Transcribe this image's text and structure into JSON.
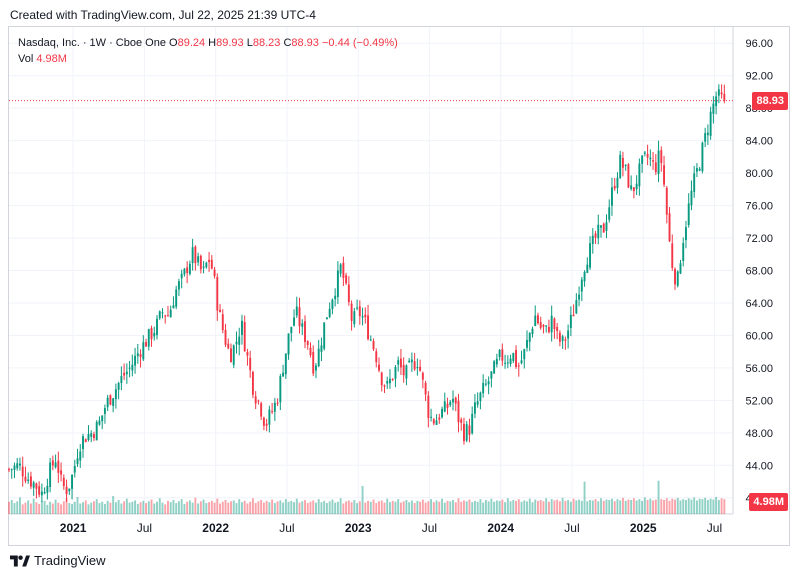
{
  "header": {
    "created": "Created with TradingView.com, Jul 22, 2025 21:39 UTC-4"
  },
  "legend": {
    "symbol": "Nasdaq, Inc. · 1W · Cboe One",
    "o_label": "O",
    "o_value": "89.24",
    "h_label": "H",
    "h_value": "89.93",
    "l_label": "L",
    "l_value": "88.23",
    "c_label": "C",
    "c_value": "88.93",
    "change": "−0.44 (−0.49%)",
    "vol_label": "Vol",
    "vol_value": "4.98M"
  },
  "price_tag": "88.93",
  "volume_tag": "4.98M",
  "footer": {
    "brand": "TradingView"
  },
  "colors": {
    "up": "#089981",
    "down": "#f23645",
    "grid": "#f0f3fa",
    "axis_text": "#131722"
  },
  "chart_data": {
    "type": "candlestick",
    "x_tick_labels": [
      "2021",
      "Jul",
      "2022",
      "Jul",
      "2023",
      "Jul",
      "2024",
      "Jul",
      "2025",
      "Jul"
    ],
    "x_tick_values": [
      2021.0,
      2021.5,
      2022.0,
      2022.5,
      2023.0,
      2023.5,
      2024.0,
      2024.5,
      2025.0,
      2025.5
    ],
    "x_range": [
      2020.55,
      2025.63
    ],
    "y_ticks": [
      "40.00",
      "44.00",
      "48.00",
      "52.00",
      "56.00",
      "60.00",
      "64.00",
      "68.00",
      "72.00",
      "76.00",
      "80.00",
      "84.00",
      "88.00",
      "92.00",
      "96.00"
    ],
    "y_range": [
      38.0,
      98.0
    ],
    "last_price": 88.93,
    "price_path": [
      [
        2020.55,
        43.5
      ],
      [
        2020.62,
        44.0
      ],
      [
        2020.68,
        42.5
      ],
      [
        2020.74,
        41.5
      ],
      [
        2020.78,
        40.5
      ],
      [
        2020.83,
        43.0
      ],
      [
        2020.88,
        45.0
      ],
      [
        2020.92,
        41.5
      ],
      [
        2020.96,
        41.0
      ],
      [
        2021.0,
        43.0
      ],
      [
        2021.04,
        46.5
      ],
      [
        2021.08,
        47.5
      ],
      [
        2021.13,
        48.0
      ],
      [
        2021.18,
        49.0
      ],
      [
        2021.23,
        51.5
      ],
      [
        2021.3,
        53.5
      ],
      [
        2021.35,
        55.0
      ],
      [
        2021.4,
        56.0
      ],
      [
        2021.46,
        58.0
      ],
      [
        2021.52,
        59.5
      ],
      [
        2021.58,
        61.0
      ],
      [
        2021.63,
        63.0
      ],
      [
        2021.67,
        62.5
      ],
      [
        2021.72,
        65.5
      ],
      [
        2021.77,
        67.0
      ],
      [
        2021.81,
        69.0
      ],
      [
        2021.84,
        70.0
      ],
      [
        2021.87,
        69.0
      ],
      [
        2021.91,
        67.5
      ],
      [
        2021.95,
        69.5
      ],
      [
        2021.98,
        68.0
      ],
      [
        2022.02,
        63.0
      ],
      [
        2022.06,
        60.0
      ],
      [
        2022.1,
        57.5
      ],
      [
        2022.14,
        59.0
      ],
      [
        2022.18,
        61.5
      ],
      [
        2022.22,
        57.5
      ],
      [
        2022.27,
        53.0
      ],
      [
        2022.31,
        51.5
      ],
      [
        2022.35,
        49.0
      ],
      [
        2022.39,
        50.5
      ],
      [
        2022.43,
        52.0
      ],
      [
        2022.47,
        56.0
      ],
      [
        2022.52,
        60.5
      ],
      [
        2022.56,
        63.0
      ],
      [
        2022.6,
        61.0
      ],
      [
        2022.65,
        59.0
      ],
      [
        2022.69,
        56.0
      ],
      [
        2022.73,
        58.5
      ],
      [
        2022.77,
        62.0
      ],
      [
        2022.81,
        64.5
      ],
      [
        2022.85,
        66.5
      ],
      [
        2022.88,
        68.5
      ],
      [
        2022.92,
        65.0
      ],
      [
        2022.96,
        61.5
      ],
      [
        2023.0,
        63.0
      ],
      [
        2023.04,
        62.0
      ],
      [
        2023.08,
        60.0
      ],
      [
        2023.12,
        58.0
      ],
      [
        2023.16,
        55.0
      ],
      [
        2023.2,
        53.5
      ],
      [
        2023.24,
        55.0
      ],
      [
        2023.28,
        56.5
      ],
      [
        2023.33,
        55.0
      ],
      [
        2023.38,
        56.5
      ],
      [
        2023.42,
        57.0
      ],
      [
        2023.46,
        53.5
      ],
      [
        2023.5,
        50.0
      ],
      [
        2023.54,
        49.5
      ],
      [
        2023.58,
        50.5
      ],
      [
        2023.62,
        51.0
      ],
      [
        2023.66,
        52.5
      ],
      [
        2023.7,
        50.0
      ],
      [
        2023.74,
        48.0
      ],
      [
        2023.78,
        48.5
      ],
      [
        2023.82,
        51.0
      ],
      [
        2023.87,
        53.0
      ],
      [
        2023.92,
        54.5
      ],
      [
        2023.96,
        56.0
      ],
      [
        2024.0,
        57.5
      ],
      [
        2024.04,
        57.0
      ],
      [
        2024.08,
        58.0
      ],
      [
        2024.12,
        56.0
      ],
      [
        2024.16,
        57.5
      ],
      [
        2024.2,
        60.0
      ],
      [
        2024.24,
        62.5
      ],
      [
        2024.28,
        61.0
      ],
      [
        2024.32,
        60.5
      ],
      [
        2024.36,
        62.0
      ],
      [
        2024.4,
        59.5
      ],
      [
        2024.44,
        59.0
      ],
      [
        2024.48,
        61.0
      ],
      [
        2024.52,
        63.5
      ],
      [
        2024.56,
        67.0
      ],
      [
        2024.6,
        69.5
      ],
      [
        2024.64,
        71.0
      ],
      [
        2024.68,
        72.5
      ],
      [
        2024.72,
        73.0
      ],
      [
        2024.76,
        76.0
      ],
      [
        2024.8,
        79.0
      ],
      [
        2024.84,
        81.5
      ],
      [
        2024.88,
        80.0
      ],
      [
        2024.92,
        77.5
      ],
      [
        2024.96,
        79.5
      ],
      [
        2025.0,
        81.5
      ],
      [
        2025.04,
        82.0
      ],
      [
        2025.08,
        80.5
      ],
      [
        2025.12,
        82.5
      ],
      [
        2025.15,
        78.0
      ],
      [
        2025.18,
        72.0
      ],
      [
        2025.21,
        68.0
      ],
      [
        2025.24,
        66.5
      ],
      [
        2025.27,
        71.0
      ],
      [
        2025.31,
        75.0
      ],
      [
        2025.35,
        78.5
      ],
      [
        2025.39,
        81.0
      ],
      [
        2025.43,
        84.0
      ],
      [
        2025.47,
        87.0
      ],
      [
        2025.51,
        89.5
      ],
      [
        2025.54,
        89.2
      ],
      [
        2025.56,
        88.93
      ]
    ],
    "volume_m": [
      2.8,
      3.2,
      2.5,
      2.9,
      3.8,
      2.2,
      2.6,
      3.1,
      2.4,
      3.5,
      2.7,
      2.3,
      2.9,
      3.0,
      2.1,
      2.8,
      2.4,
      3.3,
      2.6,
      2.2,
      2.9,
      3.6,
      2.5,
      2.3,
      2.8,
      3.9,
      2.4,
      2.7,
      3.1,
      2.2,
      2.6,
      2.9,
      3.4,
      2.5,
      2.8,
      2.3,
      3.0,
      2.6,
      4.1,
      2.7,
      3.2,
      2.4,
      2.9,
      3.5,
      2.6,
      2.8,
      3.1,
      2.3,
      2.7,
      3.0,
      2.5,
      2.9,
      3.3,
      2.4,
      2.8,
      3.6,
      2.6,
      2.2,
      3.0,
      2.7,
      3.2,
      2.5,
      2.9,
      3.4,
      2.3,
      2.8,
      3.1,
      2.6,
      3.7,
      2.4,
      2.9,
      3.3,
      2.5,
      2.7,
      3.0,
      2.6,
      3.5,
      2.4,
      2.8,
      3.2,
      2.6,
      2.9,
      3.1,
      2.5,
      3.4,
      2.7,
      3.0,
      2.4,
      2.8,
      3.6,
      2.5,
      2.9,
      3.2,
      2.6,
      3.0,
      2.7,
      3.3,
      2.5,
      2.9,
      3.1,
      2.6,
      3.4,
      2.8,
      3.0,
      2.7,
      3.5,
      2.6,
      2.9,
      3.2,
      2.5,
      2.8,
      3.1,
      2.6,
      3.4,
      2.7,
      3.0,
      2.5,
      2.9,
      3.3,
      2.6,
      2.8,
      3.6,
      2.4,
      2.9,
      3.1,
      2.7,
      3.2,
      2.5,
      2.9,
      6.4,
      2.6,
      3.0,
      2.8,
      3.3,
      2.5,
      2.9,
      3.1,
      2.6,
      3.5,
      2.7,
      3.0,
      2.8,
      3.4,
      2.6,
      2.9,
      3.2,
      2.7,
      3.1,
      2.5,
      3.0,
      2.8,
      3.3,
      2.6,
      2.9,
      3.4,
      2.7,
      3.1,
      2.8,
      3.5,
      2.6,
      3.0,
      2.9,
      3.2,
      2.7,
      3.6,
      2.8,
      3.1,
      2.9,
      3.3,
      2.7,
      3.0,
      2.8,
      3.4,
      2.6,
      3.2,
      2.9,
      3.5,
      2.8,
      3.1,
      3.0,
      3.3,
      2.7,
      3.6,
      2.9,
      3.2,
      3.0,
      3.4,
      2.8,
      3.1,
      2.9,
      3.5,
      2.7,
      3.3,
      3.0,
      3.2,
      2.9,
      3.6,
      2.8,
      3.4,
      3.1,
      3.3,
      2.9,
      3.7,
      3.0,
      3.2,
      2.8,
      3.5,
      3.1,
      3.3,
      3.0,
      7.4,
      2.9,
      3.2,
      3.1,
      3.4,
      2.9,
      3.6,
      3.0,
      3.3,
      3.2,
      3.5,
      2.9,
      3.4,
      3.1,
      3.7,
      3.0,
      3.3,
      3.2,
      3.6,
      3.1,
      3.4,
      3.0,
      3.8,
      3.2,
      3.5,
      3.1,
      3.3,
      7.6,
      3.4,
      3.2,
      3.6,
      3.0,
      3.5,
      3.3,
      3.7,
      3.1,
      3.4,
      3.2,
      3.6,
      3.3,
      3.8,
      3.1,
      3.5,
      3.4,
      3.7,
      3.2,
      3.5,
      3.3,
      3.9,
      3.2,
      3.6,
      3.4,
      3.8,
      4.3,
      3.7,
      3.5,
      4.6,
      3.6,
      3.9,
      3.4,
      4.1,
      3.8,
      5.1,
      3.7,
      4.0,
      3.6,
      4.3,
      3.9,
      4.98
    ],
    "volume_max_m": 16
  }
}
